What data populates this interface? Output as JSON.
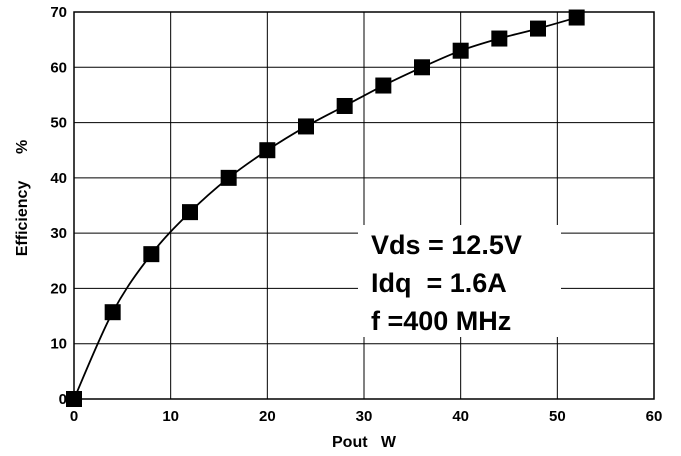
{
  "chart_data": {
    "type": "line",
    "xlabel": "Pout   W",
    "ylabel": "Efficiency      %",
    "xlim": [
      0,
      60
    ],
    "ylim": [
      0,
      70
    ],
    "x_ticks": [
      "0",
      "10",
      "20",
      "30",
      "40",
      "50",
      "60"
    ],
    "y_ticks": [
      "0",
      "10",
      "20",
      "30",
      "40",
      "50",
      "60",
      "70"
    ],
    "grid": true,
    "legend": "none",
    "series": [
      {
        "marker": "square",
        "color": "#000000",
        "x": [
          0,
          4,
          8,
          12,
          16,
          20,
          24,
          28,
          32,
          36,
          40,
          44,
          48,
          52
        ],
        "y": [
          0,
          15.7,
          26.2,
          33.8,
          40,
          45,
          49.3,
          53,
          56.7,
          60,
          63,
          65.2,
          67,
          69
        ]
      }
    ],
    "annotations": [
      "Vds = 12.5V",
      "Idq  = 1.6A",
      "f =400 MHz"
    ]
  }
}
